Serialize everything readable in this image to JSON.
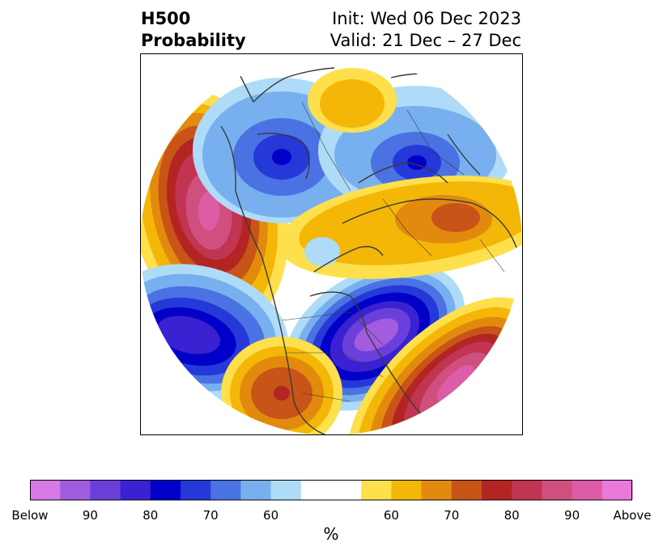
{
  "title": {
    "left_line1": "H500",
    "left_line2": "Probability",
    "right_line1": "Init: Wed 06 Dec 2023",
    "right_line2": "Valid: 21 Dec – 27 Dec"
  },
  "colorbar": {
    "colors": [
      "#d77ae6",
      "#a25ce0",
      "#6b3fd9",
      "#3a22d2",
      "#0000c8",
      "#2538d8",
      "#4a72e3",
      "#78b0ef",
      "#aedbf7",
      "#ffffff",
      "#ffffff",
      "#fde04b",
      "#f4b708",
      "#e28a0e",
      "#c85418",
      "#b32523",
      "#c13452",
      "#cf507e",
      "#dc5ca8",
      "#e97ad9"
    ],
    "tick_labels": [
      "Below",
      "90",
      "80",
      "70",
      "60",
      "60",
      "70",
      "80",
      "90",
      "Above"
    ],
    "unit": "%"
  },
  "map": {
    "projection": "north-polar-stereographic",
    "anomalies": [
      {
        "region": "Northeast Pacific / Gulf of Alaska",
        "sign": "above",
        "peak_category": "Above"
      },
      {
        "region": "Central North Pacific",
        "sign": "below",
        "peak_category": "80"
      },
      {
        "region": "Eastern Canada / Hudson Bay",
        "sign": "below",
        "peak_category": "90"
      },
      {
        "region": "Western Atlantic",
        "sign": "above",
        "peak_category": "90"
      },
      {
        "region": "Southwestern United States",
        "sign": "above",
        "peak_category": "80"
      },
      {
        "region": "Central Siberia",
        "sign": "below",
        "peak_category": "80"
      },
      {
        "region": "Eastern Siberia",
        "sign": "below",
        "peak_category": "80"
      },
      {
        "region": "Western Russia / Scandinavia",
        "sign": "above",
        "peak_category": "70"
      },
      {
        "region": "Central Asia / Mongolia",
        "sign": "above",
        "peak_category": "60"
      }
    ]
  }
}
